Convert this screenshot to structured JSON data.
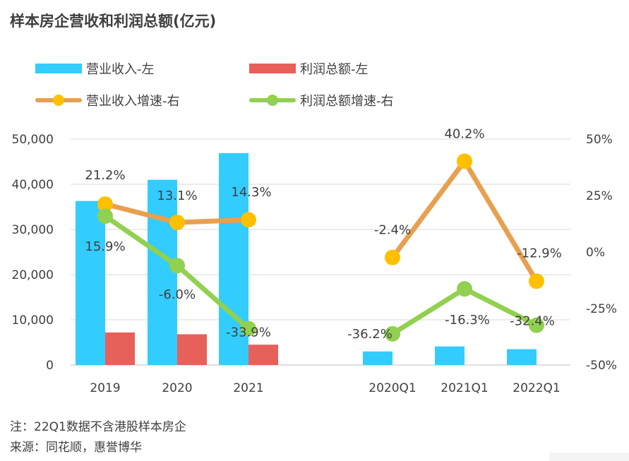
{
  "title": "样本房企营收和利润总额(亿元)",
  "legend": {
    "revenue": "营业收入-左",
    "profit": "利润总额-左",
    "revenue_growth": "营业收入增速-右",
    "profit_growth": "利润总额增速-右"
  },
  "notes": {
    "note1": "注：22Q1数据不含港股样本房企",
    "note2": "来源：同花顺，惠誉博华"
  },
  "colors": {
    "revenue": "#33ccff",
    "profit": "#e8605a",
    "revenue_growth": "#e8a050",
    "revenue_growth_marker": "#ffc000",
    "profit_growth": "#92d050",
    "axis_text": "#404040",
    "grid": "#d9d9d9"
  },
  "chart_data": {
    "type": "bar",
    "categories": [
      "2019",
      "2020",
      "2021",
      "2020Q1",
      "2021Q1",
      "2022Q1"
    ],
    "series": [
      {
        "name": "营业收入-左",
        "type": "bar",
        "axis": "left",
        "values": [
          36300,
          41000,
          46900,
          3000,
          4100,
          3500
        ]
      },
      {
        "name": "利润总额-左",
        "type": "bar",
        "axis": "left",
        "values": [
          7200,
          6800,
          4500,
          null,
          null,
          null
        ]
      },
      {
        "name": "营业收入增速-右",
        "type": "line",
        "axis": "right",
        "groups": [
          [
            21.2,
            13.1,
            14.3
          ],
          [
            -2.4,
            40.2,
            -12.9
          ]
        ],
        "labels": [
          "21.2%",
          "13.1%",
          "14.3%",
          "-2.4%",
          "40.2%",
          "-12.9%"
        ]
      },
      {
        "name": "利润总额增速-右",
        "type": "line",
        "axis": "right",
        "groups": [
          [
            15.9,
            -6.0,
            -33.9
          ],
          [
            -36.2,
            -16.3,
            -32.4
          ]
        ],
        "labels": [
          "15.9%",
          "-6.0%",
          "-33.9%",
          "-36.2%",
          "-16.3%",
          "-32.4%"
        ]
      }
    ],
    "y_left": {
      "range": [
        0,
        50000
      ],
      "ticks": [
        "0",
        "10,000",
        "20,000",
        "30,000",
        "40,000",
        "50,000"
      ]
    },
    "y_right": {
      "range": [
        -50,
        50
      ],
      "ticks": [
        "-50%",
        "-25%",
        "0%",
        "25%",
        "50%"
      ]
    },
    "grid": true,
    "legend_position": "top-left"
  }
}
